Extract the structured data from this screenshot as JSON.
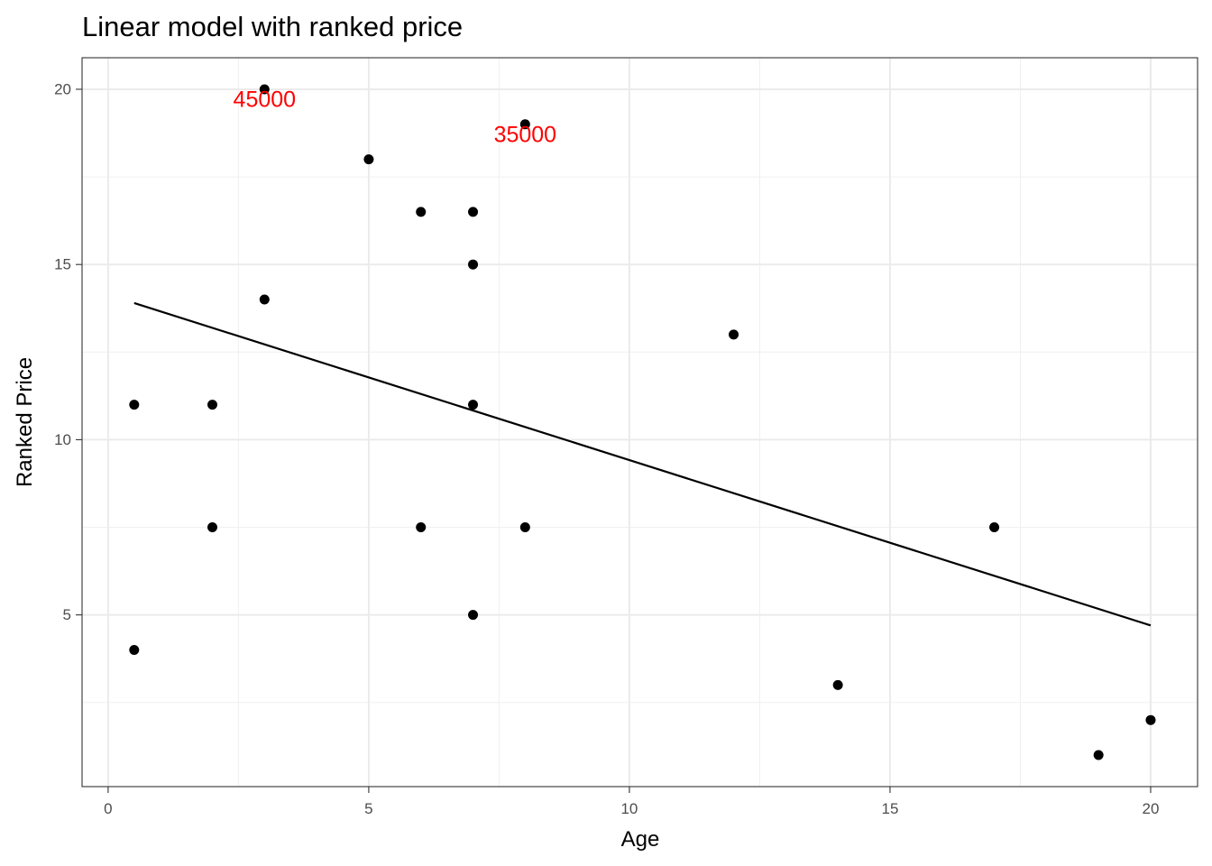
{
  "chart_data": {
    "type": "scatter",
    "title": "Linear model with ranked price",
    "xlabel": "Age",
    "ylabel": "Ranked Price",
    "xlim": [
      -0.5,
      20.9
    ],
    "ylim": [
      0.1,
      20.9
    ],
    "x_ticks": [
      0,
      5,
      10,
      15,
      20
    ],
    "y_ticks": [
      5,
      10,
      15,
      20
    ],
    "x_tick_labels": [
      "0",
      "5",
      "10",
      "15",
      "20"
    ],
    "y_tick_labels": [
      "5",
      "10",
      "15",
      "20"
    ],
    "grid": true,
    "points": [
      {
        "x": 0.5,
        "y": 11
      },
      {
        "x": 0.5,
        "y": 4
      },
      {
        "x": 2,
        "y": 11
      },
      {
        "x": 2,
        "y": 7.5
      },
      {
        "x": 3,
        "y": 20
      },
      {
        "x": 3,
        "y": 14
      },
      {
        "x": 5,
        "y": 18
      },
      {
        "x": 6,
        "y": 16.5
      },
      {
        "x": 6,
        "y": 7.5
      },
      {
        "x": 7,
        "y": 16.5
      },
      {
        "x": 7,
        "y": 15
      },
      {
        "x": 7,
        "y": 11
      },
      {
        "x": 7,
        "y": 5
      },
      {
        "x": 8,
        "y": 19
      },
      {
        "x": 8,
        "y": 7.5
      },
      {
        "x": 12,
        "y": 13
      },
      {
        "x": 14,
        "y": 3
      },
      {
        "x": 17,
        "y": 7.5
      },
      {
        "x": 19,
        "y": 1
      },
      {
        "x": 20,
        "y": 2
      }
    ],
    "fit_line": {
      "x": [
        0.5,
        20
      ],
      "y": [
        13.9,
        4.7
      ],
      "color": "#000000"
    },
    "annotations": [
      {
        "text": "45000",
        "x": 3,
        "y": 19.7,
        "color": "#ff0000"
      },
      {
        "text": "35000",
        "x": 8,
        "y": 18.7,
        "color": "#ff0000"
      }
    ],
    "point_color": "#000000"
  }
}
